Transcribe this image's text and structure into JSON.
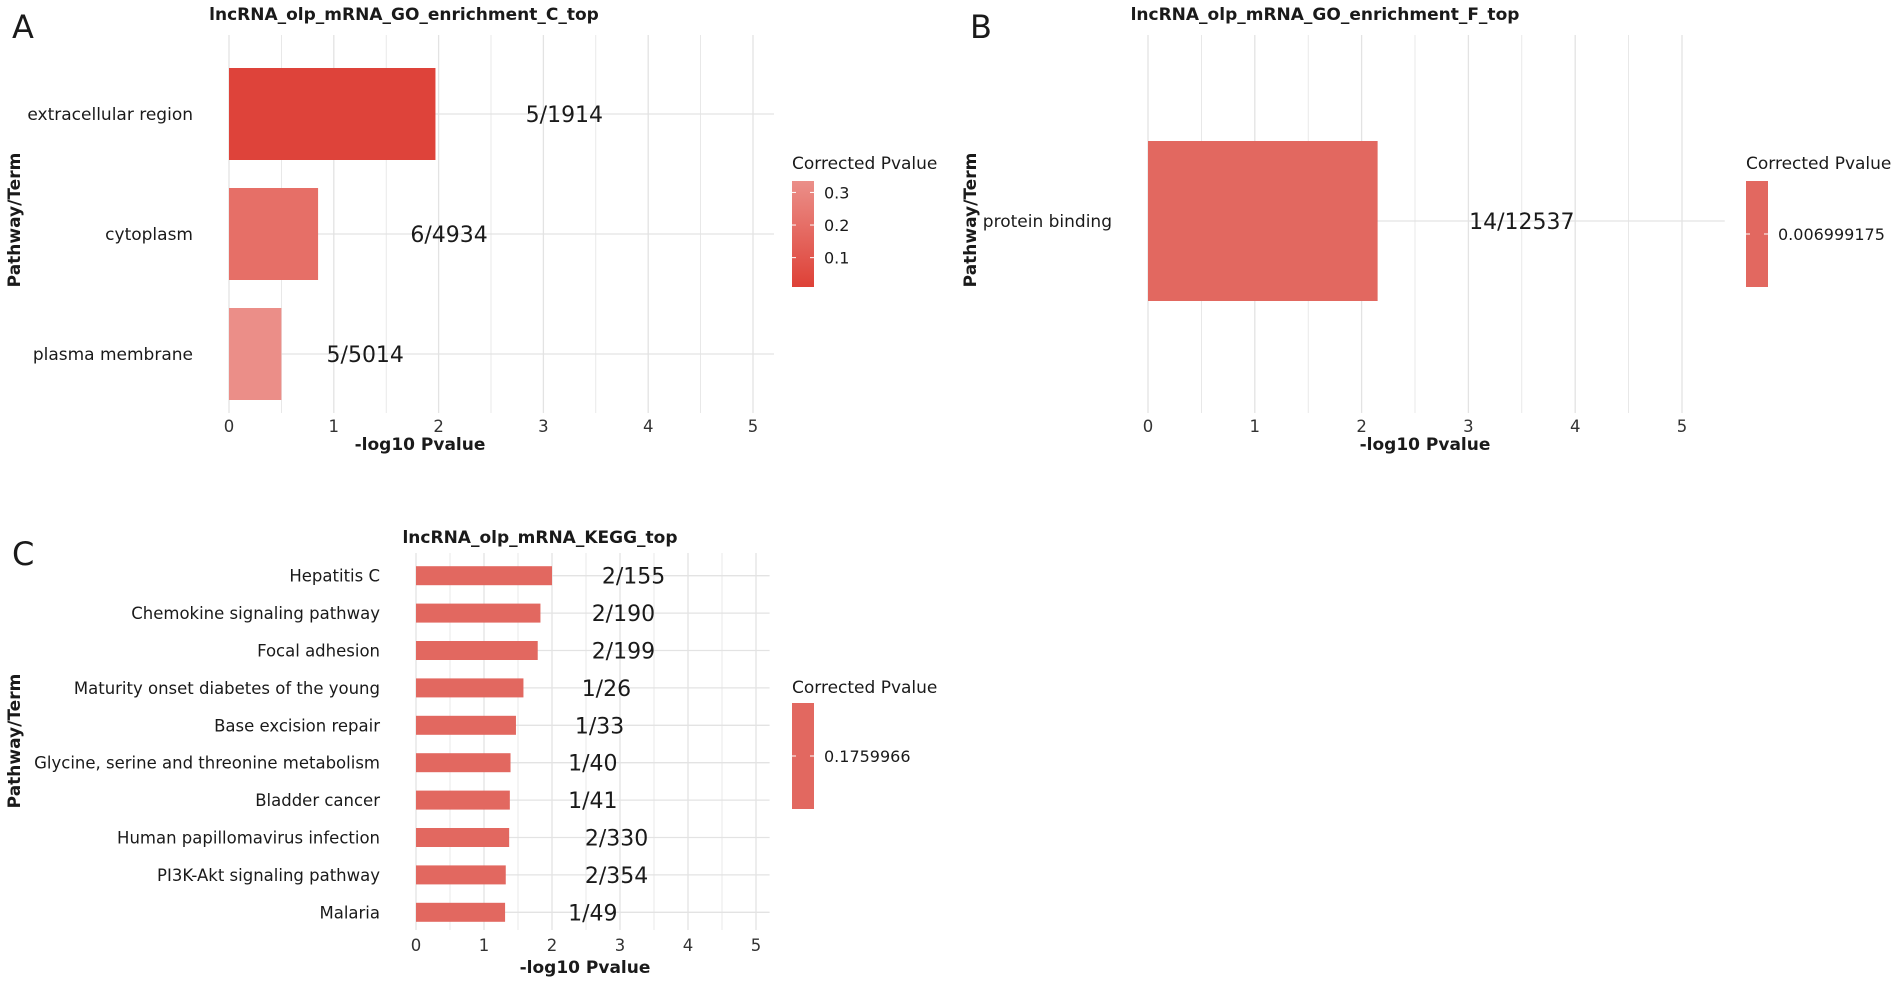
{
  "figure": {
    "background": "#ffffff",
    "grid_color": "#e3e3e3",
    "text_color": "#1a1a1a"
  },
  "chart_data": [
    {
      "panel_label": "A",
      "type": "bar",
      "orientation": "horizontal",
      "title": "lncRNA_olp_mRNA_GO_enrichment_C_top",
      "xlabel": "-log10 Pvalue",
      "ylabel": "Pathway/Term",
      "xlim": [
        0,
        5.2
      ],
      "xticks": [
        "0",
        "1",
        "2",
        "3",
        "4",
        "5"
      ],
      "grid": true,
      "categories": [
        "extracellular region",
        "cytoplasm",
        "plasma membrane"
      ],
      "values": [
        1.97,
        0.85,
        0.5
      ],
      "label_positions": [
        3.2,
        2.1,
        1.3
      ],
      "annotations": [
        "5/1914",
        "6/4934",
        "5/5014"
      ],
      "color_values": [
        0.02,
        0.2,
        0.33
      ],
      "legend": {
        "title": "Corrected Pvalue",
        "placement": "right",
        "ticks": [
          "0.3",
          "0.2",
          "0.1"
        ],
        "tick_values": [
          0.3,
          0.2,
          0.1
        ],
        "range": [
          0.01,
          0.335
        ],
        "low_color": "#de4137",
        "high_color": "#eb8f89"
      }
    },
    {
      "panel_label": "B",
      "type": "bar",
      "orientation": "horizontal",
      "title": "lncRNA_olp_mRNA_GO_enrichment_F_top",
      "xlabel": "-log10 Pvalue",
      "ylabel": "Pathway/Term",
      "xlim": [
        0,
        5.4
      ],
      "xticks": [
        "0",
        "1",
        "2",
        "3",
        "4",
        "5"
      ],
      "grid": true,
      "categories": [
        "protein binding"
      ],
      "values": [
        2.15
      ],
      "label_positions": [
        3.5
      ],
      "annotations": [
        "14/12537"
      ],
      "color_values": [
        0.006999175
      ],
      "legend": {
        "title": "Corrected Pvalue",
        "placement": "right",
        "ticks": [
          "0.006999175"
        ],
        "color": "#e26860"
      }
    },
    {
      "panel_label": "C",
      "type": "bar",
      "orientation": "horizontal",
      "title": "lncRNA_olp_mRNA_KEGG_top",
      "xlabel": "-log10 Pvalue",
      "ylabel": "Pathway/Term",
      "xlim": [
        0,
        5.2
      ],
      "xticks": [
        "0",
        "1",
        "2",
        "3",
        "4",
        "5"
      ],
      "grid": true,
      "categories": [
        "Hepatitis C",
        "Chemokine signaling pathway",
        "Focal adhesion",
        "Maturity onset diabetes of the young",
        "Base excision repair",
        "Glycine, serine and threonine metabolism",
        "Bladder cancer",
        "Human papillomavirus infection",
        "PI3K-Akt signaling pathway",
        "Malaria"
      ],
      "values": [
        2.0,
        1.83,
        1.79,
        1.58,
        1.47,
        1.39,
        1.38,
        1.37,
        1.32,
        1.31
      ],
      "label_positions": [
        3.2,
        3.05,
        3.05,
        2.8,
        2.7,
        2.6,
        2.6,
        2.95,
        2.95,
        2.6
      ],
      "annotations": [
        "2/155",
        "2/190",
        "2/199",
        "1/26",
        "1/33",
        "1/40",
        "1/41",
        "2/330",
        "2/354",
        "1/49"
      ],
      "color_values": [
        0.1759966,
        0.1759966,
        0.1759966,
        0.1759966,
        0.1759966,
        0.1759966,
        0.1759966,
        0.1759966,
        0.1759966,
        0.1759966
      ],
      "legend": {
        "title": "Corrected Pvalue",
        "placement": "right",
        "ticks": [
          "0.1759966"
        ],
        "color": "#e26860"
      }
    }
  ]
}
